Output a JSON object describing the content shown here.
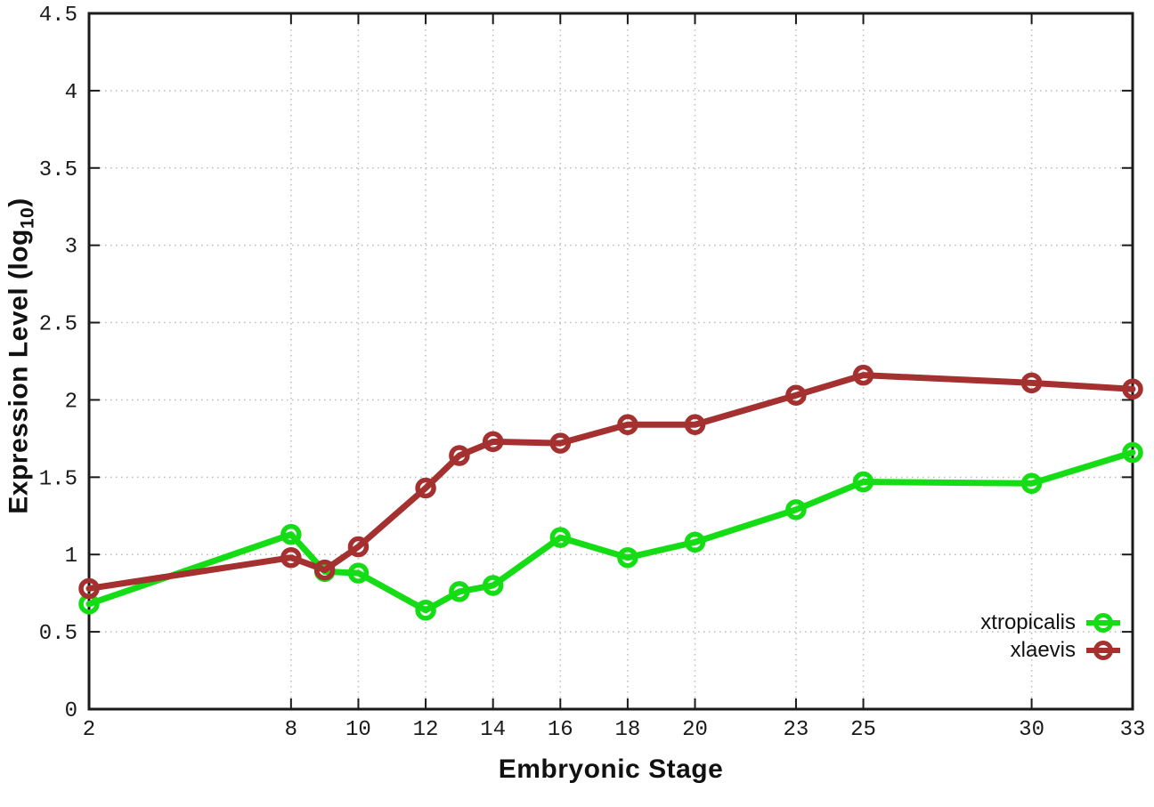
{
  "chart_data": {
    "type": "line",
    "title": "",
    "xlabel": "Embryonic Stage",
    "ylabel_pre": "Expression Level (log",
    "ylabel_sub": "10",
    "ylabel_post": ")",
    "xlim": [
      2,
      33
    ],
    "ylim": [
      0,
      4.5
    ],
    "xticks": [
      2,
      8,
      10,
      12,
      14,
      16,
      18,
      20,
      23,
      25,
      30,
      33
    ],
    "yticks": [
      0,
      0.5,
      1,
      1.5,
      2,
      2.5,
      3,
      3.5,
      4,
      4.5
    ],
    "grid": true,
    "legend_position": "bottom-right-inside",
    "background_color": "#ffffff",
    "grid_color": "#bbbbbb",
    "axis_color": "#1a1a1a",
    "x": [
      2,
      8,
      9,
      10,
      12,
      13,
      14,
      16,
      18,
      20,
      23,
      25,
      30,
      33
    ],
    "series": [
      {
        "name": "xtropicalis",
        "color": "#15dd15",
        "marker": "open-circle",
        "values": [
          0.68,
          1.13,
          0.89,
          0.88,
          0.64,
          0.76,
          0.8,
          1.11,
          0.98,
          1.08,
          1.29,
          1.47,
          1.46,
          1.66
        ]
      },
      {
        "name": "xlaevis",
        "color": "#a53030",
        "marker": "open-circle",
        "values": [
          0.78,
          0.98,
          0.9,
          1.05,
          1.43,
          1.64,
          1.73,
          1.72,
          1.84,
          1.84,
          2.03,
          2.16,
          2.11,
          2.07
        ]
      }
    ]
  }
}
